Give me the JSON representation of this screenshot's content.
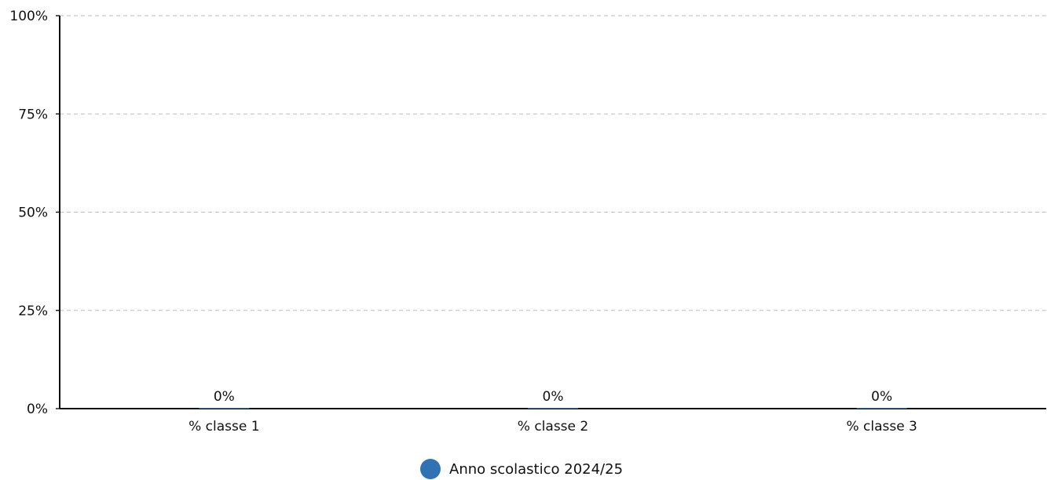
{
  "chart_data": {
    "type": "bar",
    "categories": [
      "% classe 1",
      "% classe 2",
      "% classe 3"
    ],
    "series": [
      {
        "name": "Anno scolastico 2024/25",
        "values": [
          0,
          0,
          0
        ],
        "labels": [
          "0%",
          "0%",
          "0%"
        ],
        "color": "#2f73b5"
      }
    ],
    "y_ticks": [
      "100%",
      "75%",
      "50%",
      "25%",
      "0%"
    ],
    "y_tick_values": [
      100,
      75,
      50,
      25,
      0
    ],
    "ylim": [
      0,
      100
    ],
    "grid": true,
    "legend_position": "bottom-center"
  },
  "colors": {
    "axis": "#111111",
    "grid": "#bdbdbd",
    "text": "#111111"
  }
}
